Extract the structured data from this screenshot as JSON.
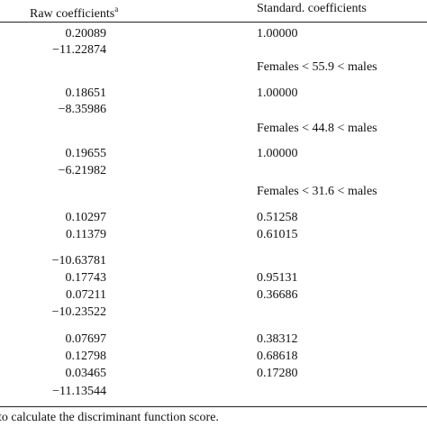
{
  "header": {
    "raw": "Raw coefficients",
    "raw_note": "a",
    "standard": "Standard. coefficients"
  },
  "rows": [
    {
      "raw": "0.20089",
      "standard": "1.00000"
    },
    {
      "raw": "−11.22874"
    },
    {
      "standard": "Females < 55.9 < males"
    },
    {
      "raw": "0.18651",
      "standard": "1.00000"
    },
    {
      "raw": "−8.35986"
    },
    {
      "standard": "Females < 44.8 < males"
    },
    {
      "raw": "0.19655",
      "standard": "1.00000"
    },
    {
      "raw": "−6.21982"
    },
    {
      "standard": "Females < 31.6 < males"
    },
    {
      "raw": "0.10297",
      "standard": "0.51258"
    },
    {
      "raw": "0.11379",
      "standard": "0.61015"
    },
    {
      "raw": "−10.63781"
    },
    {
      "raw": "0.17743",
      "standard": "0.95131"
    },
    {
      "raw": "0.07211",
      "standard": "0.36686"
    },
    {
      "raw": "−10.23522"
    },
    {
      "raw": "0.07697",
      "standard": "0.38312"
    },
    {
      "raw": "0.12798",
      "standard": "0.68618"
    },
    {
      "raw": "0.03465",
      "standard": "0.17280"
    },
    {
      "raw": "−11.13544"
    }
  ],
  "footer": "to calculate the discriminant function score."
}
